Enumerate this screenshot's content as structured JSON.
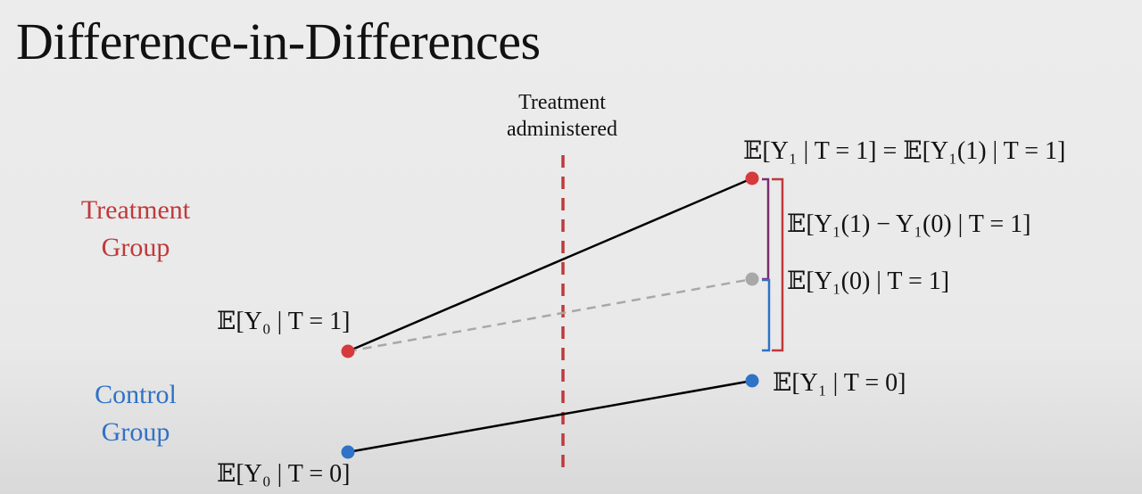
{
  "title": "Difference-in-Differences",
  "treatment_marker": {
    "line1": "Treatment",
    "line2": "administered"
  },
  "groups": {
    "treatment": {
      "line1": "Treatment",
      "line2": "Group"
    },
    "control": {
      "line1": "Control",
      "line2": "Group"
    }
  },
  "labels": {
    "treat_pre": "𝔼[Y₀ | T = 1]",
    "control_pre": "𝔼[Y₀ | T = 0]",
    "treat_post": "𝔼[Y₁ | T = 1] = 𝔼[Y₁(1) | T = 1]",
    "effect": "𝔼[Y₁(1) − Y₁(0) | T = 1]",
    "counterfactual": "𝔼[Y₁(0) | T = 1]",
    "control_post": "𝔼[Y₁ | T = 0]"
  },
  "colors": {
    "treatment": "#c0393b",
    "control": "#2f72c7",
    "counterfactual": "#9e9e9e",
    "effect_bracket": "#7b2d6e",
    "total_bracket": "#c0393b",
    "baseline_bracket": "#2f72c7"
  }
}
